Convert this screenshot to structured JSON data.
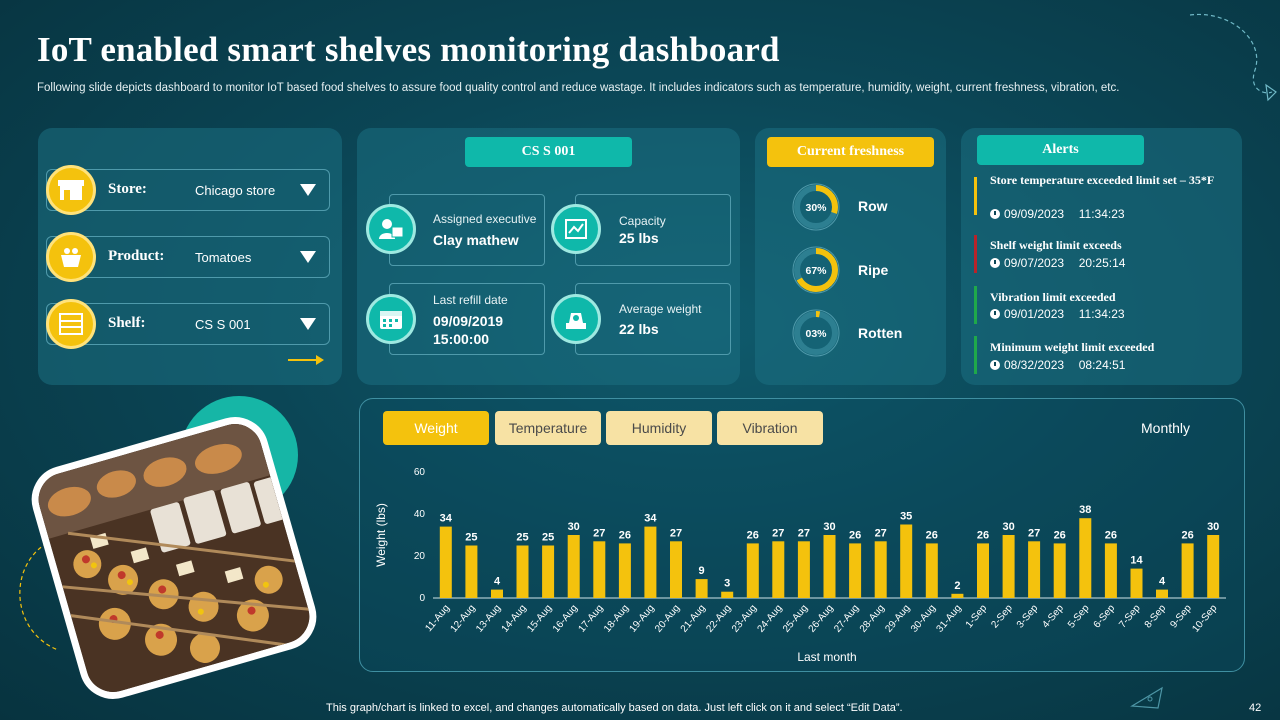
{
  "header": {
    "title": "IoT enabled smart shelves monitoring dashboard",
    "subtitle": "Following slide depicts dashboard to monitor IoT based food shelves to assure food quality control and reduce wastage. It includes indicators such as temperature, humidity, weight, current freshness, vibration, etc."
  },
  "selectors": [
    {
      "label": "Store:",
      "value": "Chicago store",
      "icon": "store-icon"
    },
    {
      "label": "Product:",
      "value": "Tomatoes",
      "icon": "basket-icon"
    },
    {
      "label": "Shelf:",
      "value": "CS S 001",
      "icon": "shelf-icon"
    }
  ],
  "shelf_card": {
    "title": "CS S 001",
    "items": [
      {
        "label": "Assigned executive",
        "value": "Clay mathew",
        "icon": "executive-icon"
      },
      {
        "label": "Capacity",
        "value": "25 lbs",
        "icon": "capacity-icon"
      },
      {
        "label": "Last refill date",
        "value": "09/09/2019 15:00:00",
        "icon": "calendar-icon"
      },
      {
        "label": "Average weight",
        "value": "22 lbs",
        "icon": "scale-icon"
      }
    ]
  },
  "freshness": {
    "title": "Current freshness",
    "items": [
      {
        "percent_label": "30%",
        "percent": 30,
        "label": "Row"
      },
      {
        "percent_label": "67%",
        "percent": 67,
        "label": "Ripe"
      },
      {
        "percent_label": "03%",
        "percent": 3,
        "label": "Rotten"
      }
    ]
  },
  "alerts": {
    "title": "Alerts",
    "items": [
      {
        "title": "Store temperature exceeded limit set – 35*F",
        "date": "09/09/2023",
        "time": "11:34:23",
        "color": "#f4c20d"
      },
      {
        "title": "Shelf weight limit exceeds",
        "date": "09/07/2023",
        "time": "20:25:14",
        "color": "#b8232a"
      },
      {
        "title": "Vibration limit exceeded",
        "date": "09/01/2023",
        "time": "11:34:23",
        "color": "#1fa84a"
      },
      {
        "title": "Minimum weight limit exceeded",
        "date": "08/32/2023",
        "time": "08:24:51",
        "color": "#1fa84a"
      }
    ]
  },
  "tabs": [
    {
      "label": "Weight",
      "active": true
    },
    {
      "label": "Temperature",
      "active": false
    },
    {
      "label": "Humidity",
      "active": false
    },
    {
      "label": "Vibration",
      "active": false
    }
  ],
  "period_label": "Monthly",
  "chart_data": {
    "type": "bar",
    "categories": [
      "11-Aug",
      "12-Aug",
      "13-Aug",
      "14-Aug",
      "15-Aug",
      "16-Aug",
      "17-Aug",
      "18-Aug",
      "19-Aug",
      "20-Aug",
      "21-Aug",
      "22-Aug",
      "23-Aug",
      "24-Aug",
      "25-Aug",
      "26-Aug",
      "27-Aug",
      "28-Aug",
      "29-Aug",
      "30-Aug",
      "31-Aug",
      "1-Sep",
      "2-Sep",
      "3-Sep",
      "4-Sep",
      "5-Sep",
      "6-Sep",
      "7-Sep",
      "8-Sep",
      "9-Sep",
      "10-Sep"
    ],
    "values": [
      34,
      25,
      4,
      25,
      25,
      30,
      27,
      26,
      34,
      27,
      9,
      3,
      26,
      27,
      27,
      30,
      26,
      27,
      35,
      26,
      2,
      26,
      30,
      27,
      26,
      38,
      26,
      14,
      4,
      26,
      30
    ],
    "xlabel": "Last month",
    "ylabel": "Weight (lbs)",
    "ylim": [
      0,
      60
    ],
    "yticks": [
      0,
      20,
      40,
      60
    ],
    "grid": false,
    "bar_color": "#f4c20d"
  },
  "footnote": "This graph/chart is linked to excel, and changes automatically based on data. Just left click on it and select “Edit Data”.",
  "page_number": "42",
  "colors": {
    "accent_yellow": "#f4c20d",
    "accent_teal": "#0fb8aa",
    "background": "#0b4656"
  }
}
